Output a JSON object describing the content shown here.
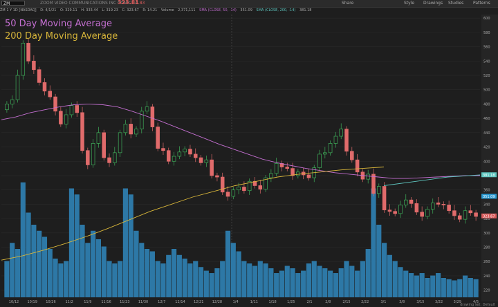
{
  "header": {
    "symbol": "ZM",
    "company": "ZOOM VIDEO COMMUNICATIONS INC COM CL A",
    "last_price": "323.81",
    "change": "7.83",
    "buttons": [
      "Share",
      "Style",
      "Drawings",
      "Studies",
      "Patterns"
    ]
  },
  "stats": {
    "period": "ZM 1 Y 1D [NASDAQ]",
    "date": "D: 4/1/21",
    "open": "O: 329.11",
    "high": "H: 333.44",
    "low": "L: 319.23",
    "close": "C: 323.67",
    "range": "R: 14.21",
    "volume_label": "Volume",
    "volume": "2,371,111",
    "sma50": "SMA (CLOSE, 50, -14)",
    "sma50_val": "351.09",
    "sma200": "SMA (CLOSE, 200, -14)",
    "sma200_val": "381.18"
  },
  "labels": {
    "ma50": "50 Day Moving Average",
    "ma200": "200 Day Moving Average"
  },
  "footer": "drawing set: Default",
  "colors": {
    "up": "#3fae5a",
    "down": "#e06b6b",
    "volume": "#2d78a6",
    "ma50": "#c46fd1",
    "ma200": "#d8b63a",
    "ma_cyan": "#5fc7c0"
  },
  "chart_data": {
    "type": "candlestick",
    "x_tick_labels": [
      "10/12",
      "10/19",
      "10/26",
      "11/2",
      "11/9",
      "11/16",
      "11/23",
      "11/30",
      "12/7",
      "12/14",
      "12/21",
      "12/28",
      "1/4",
      "1/11",
      "1/18",
      "1/25",
      "2/1",
      "2/8",
      "2/15",
      "2/22",
      "3/1",
      "3/8",
      "3/15",
      "3/22",
      "3/29",
      "4/5"
    ],
    "y_tick_labels": [
      "600",
      "580",
      "560",
      "540",
      "520",
      "500",
      "480",
      "460",
      "440",
      "420",
      "400",
      "380",
      "360",
      "340",
      "320",
      "300",
      "280",
      "260",
      "240",
      "220"
    ],
    "price_markers": [
      {
        "label": "381.18",
        "value": 381.18,
        "color": "#5fc7c0"
      },
      {
        "label": "351.09",
        "value": 351.09,
        "color": "#2a9bd4"
      },
      {
        "label": "323.67",
        "value": 323.67,
        "color": "#d85a5a"
      }
    ],
    "ylim": [
      210,
      605
    ],
    "close": [
      480,
      486,
      520,
      565,
      540,
      528,
      510,
      498,
      490,
      470,
      452,
      465,
      478,
      468,
      415,
      395,
      425,
      440,
      405,
      398,
      412,
      440,
      452,
      438,
      445,
      470,
      476,
      448,
      418,
      415,
      400,
      407,
      413,
      417,
      410,
      405,
      398,
      402,
      380,
      378,
      357,
      351,
      360,
      364,
      359,
      372,
      366,
      361,
      377,
      383,
      397,
      392,
      390,
      380,
      385,
      381,
      377,
      391,
      410,
      412,
      425,
      435,
      445,
      414,
      402,
      385,
      375,
      382,
      355,
      365,
      332,
      330,
      327,
      339,
      346,
      341,
      329,
      323,
      333,
      342,
      340,
      339,
      331,
      324,
      319,
      331,
      328,
      323
    ],
    "volume_level": [
      0.3,
      0.45,
      0.4,
      0.95,
      0.7,
      0.6,
      0.55,
      0.5,
      0.4,
      0.32,
      0.28,
      0.3,
      0.9,
      0.85,
      0.6,
      0.45,
      0.55,
      0.48,
      0.42,
      0.3,
      0.28,
      0.3,
      0.9,
      0.85,
      0.55,
      0.45,
      0.4,
      0.38,
      0.3,
      0.28,
      0.35,
      0.4,
      0.35,
      0.32,
      0.28,
      0.3,
      0.25,
      0.22,
      0.2,
      0.24,
      0.3,
      0.55,
      0.45,
      0.38,
      0.3,
      0.28,
      0.26,
      0.3,
      0.28,
      0.24,
      0.2,
      0.22,
      0.26,
      0.24,
      0.2,
      0.22,
      0.28,
      0.3,
      0.26,
      0.24,
      0.22,
      0.2,
      0.24,
      0.3,
      0.26,
      0.22,
      0.3,
      0.4,
      0.9,
      0.6,
      0.45,
      0.35,
      0.3,
      0.25,
      0.22,
      0.2,
      0.18,
      0.2,
      0.16,
      0.18,
      0.2,
      0.16,
      0.15,
      0.14,
      0.15,
      0.18,
      0.16,
      0.15
    ],
    "ma50": [
      458,
      462,
      468,
      472,
      476,
      479,
      480,
      479,
      476,
      470,
      463,
      456,
      448,
      440,
      432,
      424,
      417,
      410,
      403,
      398,
      394,
      390,
      387,
      384,
      382,
      380,
      378,
      376,
      376,
      377,
      378,
      379,
      380,
      380
    ],
    "ma200": [
      262,
      268,
      276,
      285,
      295,
      306,
      318,
      330,
      340,
      350,
      358,
      366,
      372,
      378,
      382,
      385,
      388,
      390,
      392
    ],
    "ma_cyan": [
      366,
      372,
      378,
      381
    ]
  }
}
